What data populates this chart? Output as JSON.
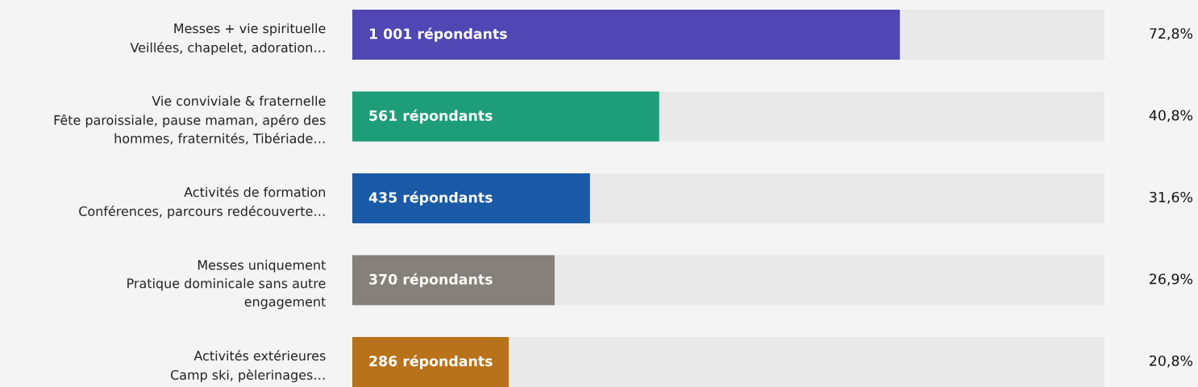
{
  "chart_data": {
    "type": "bar",
    "orientation": "horizontal",
    "categories": [
      "Messes + vie spirituelle\nVeillées, chapelet, adoration…",
      "Vie conviviale & fraternelle\nFête paroissiale, pause maman, apéro des\nhommes, fraternités, Tibériade…",
      "Activités de formation\nConférences, parcours redécouverte…",
      "Messes uniquement\nPratique dominicale sans autre\nengagement",
      "Activités extérieures\nCamp ski, pèlerinages…"
    ],
    "values": [
      72.8,
      40.8,
      31.6,
      26.9,
      20.8
    ],
    "colors": [
      "#5046b4",
      "#1e9e78",
      "#1a5aa6",
      "#858079",
      "#b8721a"
    ],
    "value_labels": [
      "72,8%",
      "40,8%",
      "31,6%",
      "26,9%",
      "20,8%"
    ],
    "annotations": [
      "1 001 répondants",
      "561 répondants",
      "435 répondants",
      "370 répondants",
      "286 répondants"
    ],
    "xlim": [
      0,
      100
    ],
    "legend": false,
    "tick_labels": "y"
  }
}
